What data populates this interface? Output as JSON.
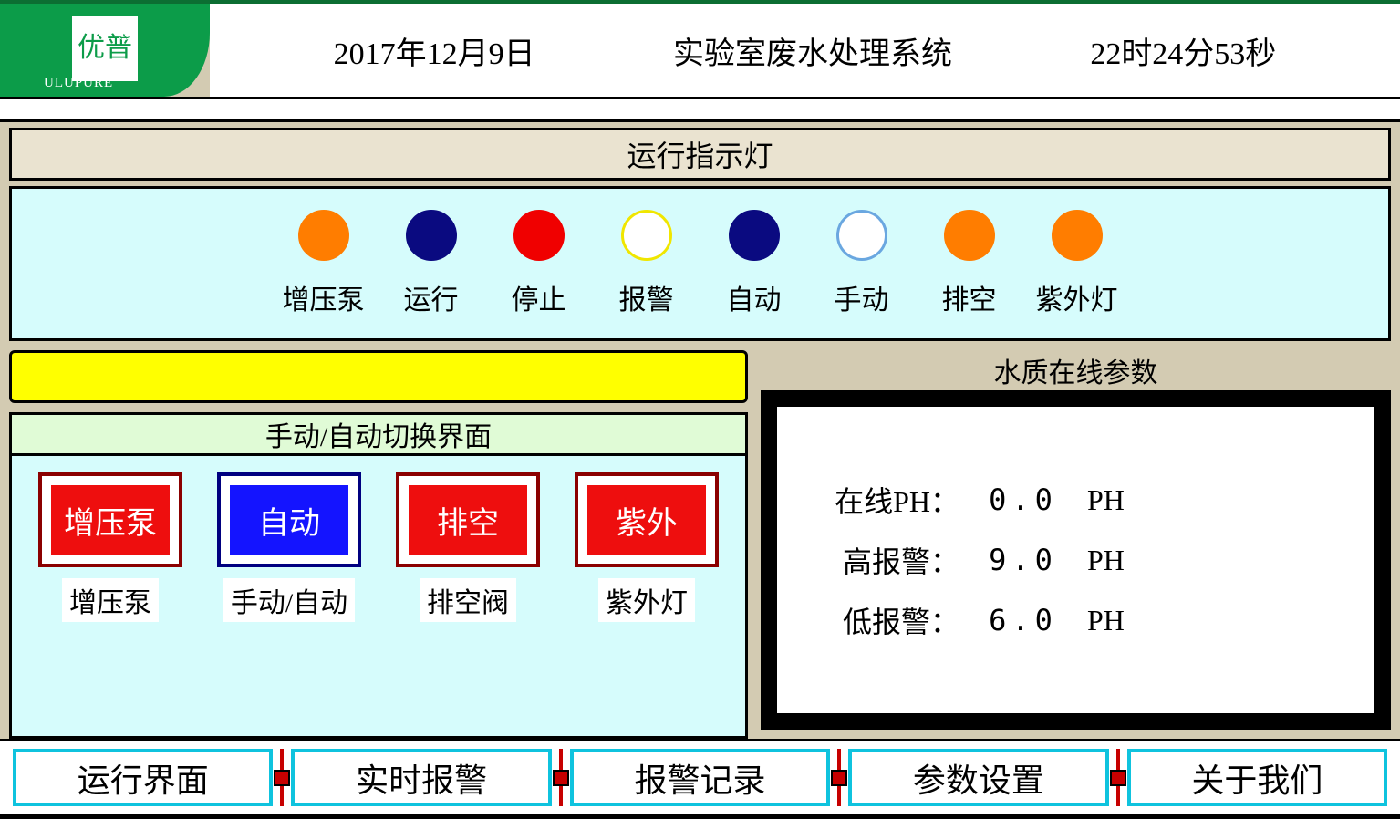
{
  "header": {
    "logo_zh": "优普",
    "logo_en": "ULUPURE",
    "reg": "®",
    "date": "2017年12月9日",
    "system_title": "实验室废水处理系统",
    "time": "22时24分53秒"
  },
  "indicator_section": {
    "title": "运行指示灯",
    "lights": [
      {
        "label": "增压泵",
        "fill": "#ff7d00",
        "border": "#ff7d00"
      },
      {
        "label": "运行",
        "fill": "#0a0a80",
        "border": "#0a0a80"
      },
      {
        "label": "停止",
        "fill": "#f00000",
        "border": "#f00000"
      },
      {
        "label": "报警",
        "fill": "#ffffff",
        "border": "#f0e600"
      },
      {
        "label": "自动",
        "fill": "#0a0a80",
        "border": "#0a0a80"
      },
      {
        "label": "手动",
        "fill": "#ffffff",
        "border": "#6aa7e0"
      },
      {
        "label": "排空",
        "fill": "#ff7d00",
        "border": "#ff7d00"
      },
      {
        "label": "紫外灯",
        "fill": "#ff7d00",
        "border": "#ff7d00"
      }
    ]
  },
  "switch_section": {
    "title": "手动/自动切换界面",
    "buttons": [
      {
        "btn": "增压泵",
        "label": "增压泵",
        "style": "red"
      },
      {
        "btn": "自动",
        "label": "手动/自动",
        "style": "blue"
      },
      {
        "btn": "排空",
        "label": "排空阀",
        "style": "red"
      },
      {
        "btn": "紫外",
        "label": "紫外灯",
        "style": "red"
      }
    ]
  },
  "water_quality": {
    "title": "水质在线参数",
    "rows": [
      {
        "label": "在线PH：",
        "value": "0.0",
        "unit": "PH"
      },
      {
        "label": "高报警：",
        "value": "9.0",
        "unit": "PH"
      },
      {
        "label": "低报警：",
        "value": "6.0",
        "unit": "PH"
      }
    ]
  },
  "nav": {
    "items": [
      "运行界面",
      "实时报警",
      "报警记录",
      "参数设置",
      "关于我们"
    ]
  },
  "colors": {
    "brand_green": "#0c9c49",
    "panel_cyan": "#d6fcfc",
    "panel_beige": "#eae3d0",
    "yellow": "#ffff00",
    "nav_border": "#0fc3de",
    "nav_sep": "#c70000"
  }
}
